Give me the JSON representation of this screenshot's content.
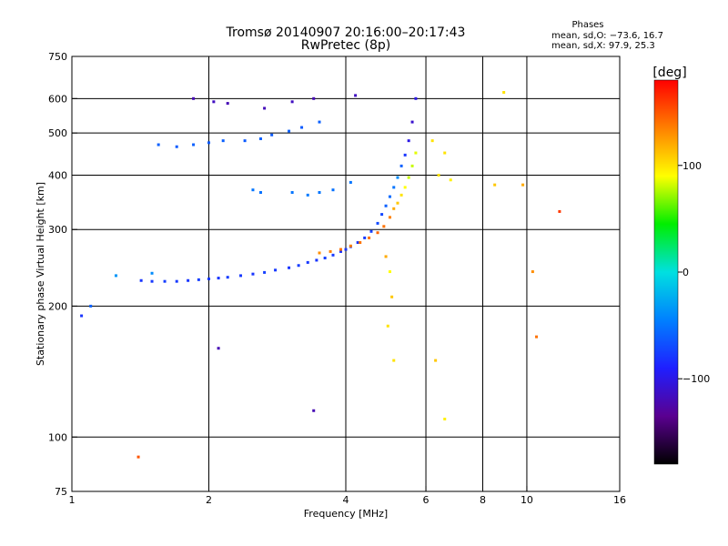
{
  "header": {
    "title": "Tromsø 20140907 20:16:00–20:17:43",
    "subtitle": "RwPretec (8p)"
  },
  "stats": {
    "heading": "Phases",
    "line_o": "mean, sd,O: −73.6, 16.7",
    "line_x": "mean, sd,X:  97.9, 25.3"
  },
  "colorbar": {
    "unit": "[deg]",
    "ticks": [
      {
        "value": 100,
        "label": "100"
      },
      {
        "value": 0,
        "label": "0"
      },
      {
        "value": -100,
        "label": "−100"
      }
    ],
    "range": [
      -180,
      180
    ],
    "colors": [
      "#000000",
      "#5a0090",
      "#1f1fff",
      "#0080ff",
      "#00e0e0",
      "#00ee00",
      "#ffff00",
      "#ff8000",
      "#ff0000"
    ]
  },
  "chart_data": {
    "type": "scatter",
    "title": "Tromsø 20140907 20:16:00–20:17:43",
    "subtitle": "RwPretec (8p)",
    "xlabel": "Frequency [MHz]",
    "ylabel": "Stationary phase Virtual Height [km]",
    "x_scale": "log",
    "y_scale": "log",
    "xlim": [
      1,
      16
    ],
    "ylim": [
      75,
      750
    ],
    "x_ticks": [
      1,
      2,
      4,
      6,
      8,
      10,
      16
    ],
    "x_tick_labels": [
      "1",
      "2",
      "4",
      "6",
      "8",
      "10",
      "16"
    ],
    "y_ticks": [
      75,
      100,
      200,
      300,
      400,
      500,
      600,
      750
    ],
    "y_tick_labels": [
      "75",
      "100",
      "200",
      "300",
      "400",
      "500",
      "600",
      "750"
    ],
    "grid": true,
    "color_variable": "phase [deg]",
    "series": [
      {
        "points": [
          [
            1.42,
            229,
            -80
          ],
          [
            1.5,
            228,
            -78
          ],
          [
            1.6,
            228,
            -76
          ],
          [
            1.7,
            228,
            -78
          ],
          [
            1.8,
            229,
            -80
          ],
          [
            1.9,
            230,
            -75
          ],
          [
            2.0,
            231,
            -78
          ],
          [
            2.1,
            232,
            -80
          ],
          [
            2.2,
            233,
            -76
          ],
          [
            2.35,
            235,
            -78
          ],
          [
            2.5,
            237,
            -80
          ],
          [
            2.65,
            239,
            -75
          ],
          [
            2.8,
            242,
            -78
          ],
          [
            3.0,
            245,
            -80
          ],
          [
            3.15,
            248,
            -76
          ],
          [
            3.3,
            252,
            -78
          ],
          [
            3.45,
            255,
            -80
          ],
          [
            3.6,
            258,
            -75
          ],
          [
            3.75,
            262,
            -78
          ],
          [
            3.9,
            267,
            -82
          ],
          [
            4.0,
            270,
            -80
          ],
          [
            4.1,
            274,
            -85
          ],
          [
            4.25,
            280,
            -80
          ],
          [
            4.4,
            287,
            -78
          ],
          [
            4.55,
            297,
            -75
          ],
          [
            4.7,
            310,
            -70
          ],
          [
            4.8,
            325,
            -72
          ],
          [
            4.9,
            340,
            -60
          ],
          [
            5.0,
            357,
            -55
          ],
          [
            5.1,
            375,
            -50
          ],
          [
            5.2,
            395,
            -40
          ],
          [
            5.3,
            420,
            -60
          ],
          [
            5.4,
            445,
            -80
          ],
          [
            5.5,
            480,
            -100
          ],
          [
            5.6,
            530,
            -110
          ],
          [
            5.7,
            600,
            -100
          ],
          [
            1.55,
            470,
            -60
          ],
          [
            1.7,
            465,
            -62
          ],
          [
            1.85,
            470,
            -60
          ],
          [
            2.0,
            475,
            -62
          ],
          [
            2.15,
            480,
            -60
          ],
          [
            2.4,
            480,
            -62
          ],
          [
            2.6,
            485,
            -60
          ],
          [
            2.75,
            495,
            -62
          ],
          [
            3.0,
            505,
            -60
          ],
          [
            3.2,
            515,
            -62
          ],
          [
            3.5,
            530,
            -60
          ],
          [
            1.85,
            600,
            -120
          ],
          [
            2.05,
            590,
            -115
          ],
          [
            2.2,
            585,
            -120
          ],
          [
            2.65,
            570,
            -118
          ],
          [
            3.05,
            590,
            -115
          ],
          [
            3.4,
            600,
            -120
          ],
          [
            4.2,
            610,
            -115
          ],
          [
            2.5,
            370,
            -50
          ],
          [
            2.6,
            365,
            -52
          ],
          [
            3.05,
            365,
            -50
          ],
          [
            3.3,
            360,
            -48
          ],
          [
            3.5,
            365,
            -50
          ],
          [
            3.75,
            370,
            -52
          ],
          [
            4.1,
            385,
            -50
          ],
          [
            1.5,
            238,
            -40
          ],
          [
            1.25,
            235,
            -35
          ],
          [
            1.05,
            190,
            -80
          ],
          [
            1.1,
            200,
            -60
          ],
          [
            2.1,
            160,
            -120
          ],
          [
            3.4,
            115,
            -120
          ]
        ]
      },
      {
        "points": [
          [
            3.5,
            265,
            130
          ],
          [
            3.7,
            267,
            135
          ],
          [
            3.9,
            270,
            140
          ],
          [
            4.1,
            275,
            135
          ],
          [
            4.3,
            280,
            140
          ],
          [
            4.5,
            287,
            140
          ],
          [
            4.7,
            295,
            145
          ],
          [
            4.85,
            305,
            140
          ],
          [
            5.0,
            320,
            135
          ],
          [
            5.1,
            335,
            120
          ],
          [
            5.2,
            345,
            110
          ],
          [
            5.3,
            360,
            100
          ],
          [
            5.4,
            375,
            90
          ],
          [
            5.5,
            395,
            80
          ],
          [
            5.6,
            420,
            80
          ],
          [
            5.7,
            450,
            85
          ],
          [
            6.2,
            480,
            100
          ],
          [
            6.4,
            400,
            100
          ],
          [
            6.6,
            450,
            100
          ],
          [
            6.8,
            390,
            95
          ],
          [
            4.9,
            260,
            120
          ],
          [
            5.0,
            240,
            90
          ],
          [
            5.05,
            210,
            110
          ],
          [
            4.95,
            180,
            100
          ],
          [
            5.1,
            150,
            100
          ],
          [
            6.3,
            150,
            110
          ],
          [
            6.6,
            110,
            95
          ],
          [
            8.5,
            380,
            110
          ],
          [
            8.9,
            620,
            100
          ],
          [
            9.8,
            380,
            120
          ],
          [
            10.3,
            240,
            130
          ],
          [
            10.5,
            170,
            140
          ],
          [
            11.8,
            330,
            160
          ],
          [
            1.4,
            90,
            150
          ]
        ]
      }
    ]
  }
}
